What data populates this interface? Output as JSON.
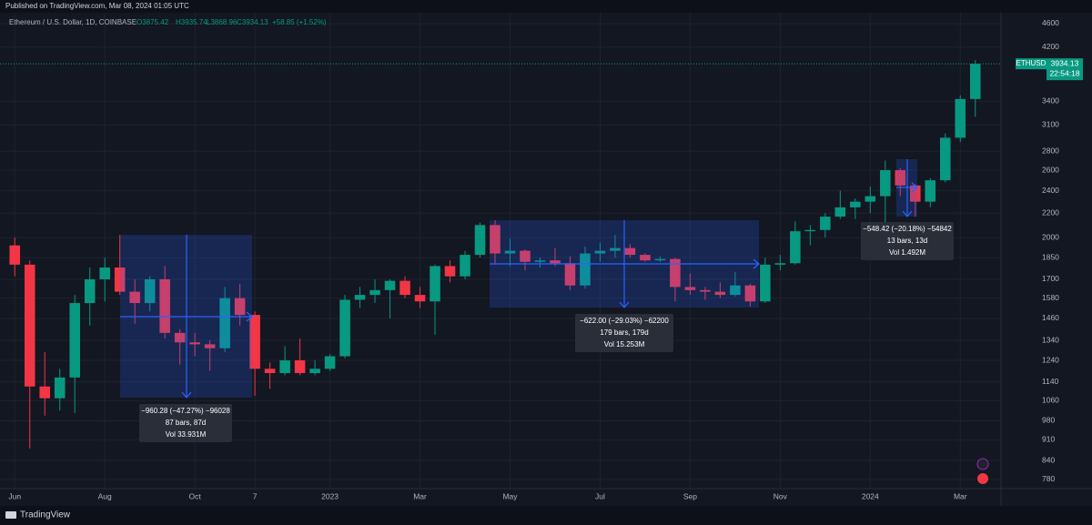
{
  "header": {
    "published": "Published on TradingView.com, Mar 08, 2024 01:05 UTC",
    "symbol": "Ethereum / U.S. Dollar, 1D, COINBASE",
    "open": "O3875.42",
    "high": "H3935.74",
    "low": "L3868.96",
    "close": "C3934.13",
    "change": "+58.85 (+1.52%)"
  },
  "chart_data": {
    "type": "candlestick",
    "log_scale": true,
    "grid": true,
    "up_color": "#089981",
    "down_color": "#f23645",
    "categories": [
      "Jun",
      null,
      null,
      null,
      null,
      null,
      "Aug",
      null,
      null,
      null,
      null,
      null,
      "Oct",
      null,
      null,
      null,
      "7",
      null,
      null,
      null,
      null,
      "2023",
      null,
      null,
      null,
      null,
      null,
      "Mar",
      null,
      null,
      null,
      null,
      null,
      "May",
      null,
      null,
      null,
      null,
      null,
      "Jul",
      null,
      null,
      null,
      null,
      null,
      "Sep",
      null,
      null,
      null,
      null,
      null,
      "Nov",
      null,
      null,
      null,
      null,
      null,
      "2024",
      null,
      null,
      null,
      null,
      null,
      "Mar",
      null
    ],
    "open": [
      1940,
      1800,
      1120,
      1070,
      1160,
      1550,
      1700,
      1780,
      1620,
      1550,
      1700,
      1380,
      1330,
      1320,
      1300,
      1580,
      1480,
      1200,
      1180,
      1240,
      1180,
      1200,
      1260,
      1570,
      1600,
      1630,
      1690,
      1600,
      1560,
      1790,
      1720,
      1870,
      2100,
      1880,
      1900,
      1820,
      1830,
      1810,
      1660,
      1880,
      1900,
      1920,
      1870,
      1830,
      1840,
      1650,
      1630,
      1620,
      1600,
      1660,
      1560,
      1800,
      1810,
      2050,
      2060,
      2170,
      2250,
      2300,
      2350,
      2600,
      2450,
      2300,
      2500,
      2950,
      3430
    ],
    "high": [
      2000,
      1830,
      1280,
      1200,
      1600,
      1780,
      1850,
      2020,
      1700,
      1720,
      1790,
      1400,
      1380,
      1340,
      1650,
      1670,
      1500,
      1230,
      1310,
      1350,
      1240,
      1270,
      1600,
      1650,
      1700,
      1700,
      1720,
      1650,
      1800,
      1830,
      1900,
      2120,
      2140,
      1990,
      1910,
      1850,
      1920,
      1860,
      1930,
      1960,
      2020,
      1950,
      1880,
      1860,
      1850,
      1740,
      1650,
      1680,
      1750,
      1670,
      1850,
      1870,
      2130,
      2100,
      2200,
      2400,
      2330,
      2440,
      2700,
      2620,
      2460,
      2520,
      3000,
      3480,
      3990
    ],
    "low": [
      1720,
      880,
      1000,
      1020,
      1010,
      1420,
      1560,
      1600,
      1430,
      1500,
      1350,
      1220,
      1260,
      1190,
      1280,
      1420,
      1080,
      1110,
      1170,
      1170,
      1170,
      1190,
      1250,
      1520,
      1550,
      1460,
      1580,
      1520,
      1370,
      1680,
      1700,
      1850,
      1800,
      1790,
      1760,
      1780,
      1790,
      1630,
      1640,
      1820,
      1850,
      1850,
      1820,
      1820,
      1560,
      1600,
      1570,
      1580,
      1590,
      1530,
      1550,
      1760,
      1800,
      1940,
      2000,
      2150,
      2150,
      2200,
      2120,
      2350,
      2170,
      2250,
      2480,
      2900,
      3200
    ],
    "close": [
      1800,
      1120,
      1070,
      1160,
      1550,
      1700,
      1780,
      1620,
      1550,
      1700,
      1380,
      1330,
      1320,
      1300,
      1580,
      1480,
      1200,
      1180,
      1240,
      1180,
      1200,
      1260,
      1570,
      1600,
      1630,
      1690,
      1600,
      1560,
      1790,
      1720,
      1870,
      2100,
      1880,
      1900,
      1820,
      1830,
      1810,
      1660,
      1880,
      1900,
      1920,
      1870,
      1830,
      1840,
      1650,
      1630,
      1620,
      1600,
      1660,
      1560,
      1800,
      1810,
      2050,
      2060,
      2170,
      2250,
      2300,
      2350,
      2600,
      2450,
      2300,
      2500,
      2950,
      3430,
      3934.13
    ],
    "ylim": [
      758,
      4732
    ],
    "yticks": [
      780,
      840,
      910,
      980,
      1060,
      1140,
      1240,
      1340,
      1460,
      1580,
      1700,
      1850,
      2000,
      2200,
      2400,
      2600,
      2800,
      3100,
      3400,
      4200,
      4600
    ],
    "price_tag": {
      "symbol": "ETHUSD",
      "price": "3934.13",
      "countdown": "22:54:18"
    },
    "annotations": [
      {
        "lines": [
          "−960.28 (−47.27%) −96028",
          "87 bars, 87d",
          "Vol 33.931M"
        ]
      },
      {
        "lines": [
          "−622.00 (−29.03%) −62200",
          "179 bars, 179d",
          "Vol 15.253M"
        ]
      },
      {
        "lines": [
          "−548.42 (−20.18%) −54842",
          "13 bars, 13d",
          "Vol 1.492M"
        ]
      }
    ]
  },
  "footer": {
    "brand": "TradingView"
  }
}
